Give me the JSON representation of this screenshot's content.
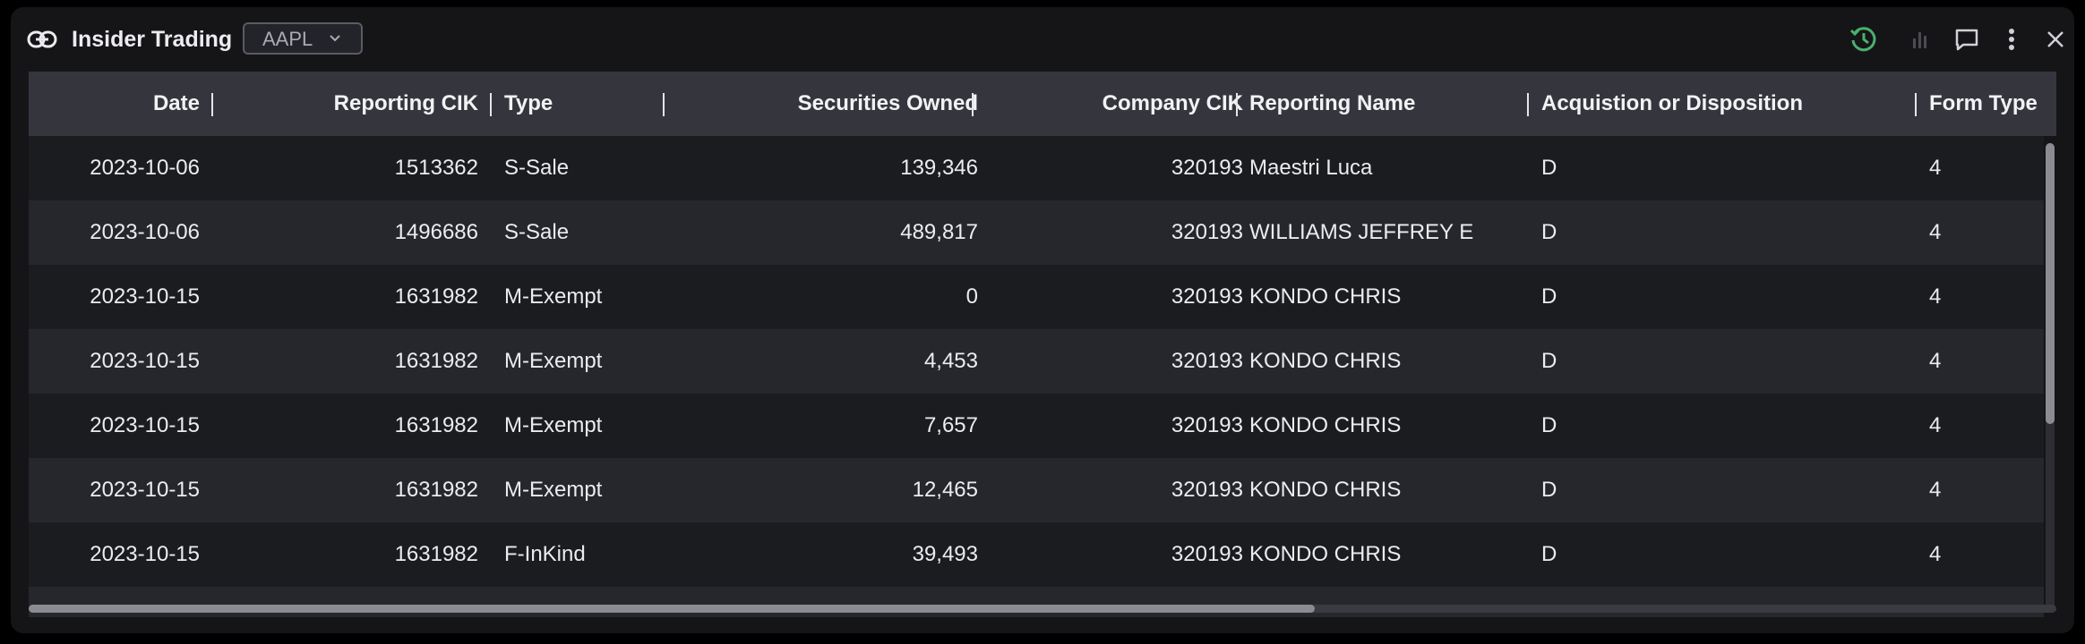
{
  "widget": {
    "title": "Insider Trading",
    "ticker": "AAPL"
  },
  "header_icons": [
    "history-icon",
    "chart-bars-icon",
    "comment-icon",
    "more-vertical-icon",
    "close-icon"
  ],
  "colors": {
    "accent_green": "#4caf6e",
    "background": "#151518",
    "header_row": "#35363d"
  },
  "table": {
    "columns": [
      "Date",
      "Reporting CIK",
      "Type",
      "Securities Owned",
      "Company CIK",
      "Reporting Name",
      "Acquistion or Disposition",
      "Form Type"
    ],
    "rows": [
      [
        "2023-10-06",
        "1513362",
        "S-Sale",
        "139,346",
        "320193",
        "Maestri Luca",
        "D",
        "4"
      ],
      [
        "2023-10-06",
        "1496686",
        "S-Sale",
        "489,817",
        "320193",
        "WILLIAMS JEFFREY E",
        "D",
        "4"
      ],
      [
        "2023-10-15",
        "1631982",
        "M-Exempt",
        "0",
        "320193",
        "KONDO CHRIS",
        "D",
        "4"
      ],
      [
        "2023-10-15",
        "1631982",
        "M-Exempt",
        "4,453",
        "320193",
        "KONDO CHRIS",
        "D",
        "4"
      ],
      [
        "2023-10-15",
        "1631982",
        "M-Exempt",
        "7,657",
        "320193",
        "KONDO CHRIS",
        "D",
        "4"
      ],
      [
        "2023-10-15",
        "1631982",
        "M-Exempt",
        "12,465",
        "320193",
        "KONDO CHRIS",
        "D",
        "4"
      ],
      [
        "2023-10-15",
        "1631982",
        "F-InKind",
        "39,493",
        "320193",
        "KONDO CHRIS",
        "D",
        "4"
      ]
    ]
  }
}
